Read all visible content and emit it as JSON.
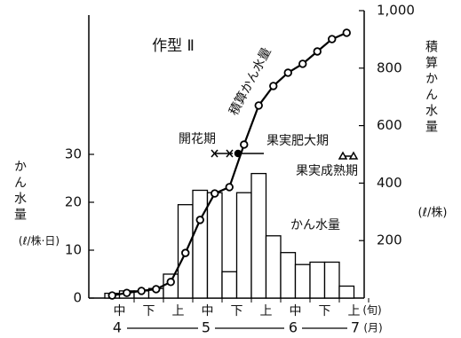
{
  "chart_data": {
    "type": "bar",
    "title": "作型 Ⅱ",
    "ylabel": "かん水量",
    "ylabel_unit": "(ℓ/株·日)",
    "y2label": "積算かん水量",
    "y2label_unit": "(ℓ/株)",
    "categories": [
      null,
      null,
      null,
      null,
      null,
      null,
      null,
      null,
      null,
      null,
      null,
      null,
      null,
      null,
      null,
      null,
      null
    ],
    "series": [
      {
        "name": "かん水量",
        "type": "bar",
        "color": "#ffffff",
        "values": [
          1,
          1.5,
          1.5,
          2,
          5,
          19.5,
          22.5,
          22,
          5.5,
          22,
          26,
          13,
          9.5,
          7,
          7.5,
          7.5,
          2.5
        ]
      },
      {
        "name": "積算かん水量",
        "type": "line",
        "axis": "y2",
        "color": "#000000",
        "values": [
          9,
          18,
          25,
          31,
          56,
          157,
          272,
          364,
          386,
          534,
          670,
          738,
          784,
          815,
          858,
          901,
          923
        ]
      }
    ],
    "decade_labels": [
      "中",
      "下",
      "上",
      "中",
      "下",
      "上",
      "中",
      "下",
      "上"
    ],
    "decade_unit": "(旬)",
    "months": [
      "4",
      "5",
      "6",
      "7"
    ],
    "month_unit": "(月)",
    "annotations": [
      "開花期",
      "果実肥大期",
      "果実成熟期"
    ],
    "ylim": [
      0,
      60
    ],
    "yticks": [
      0,
      10,
      20,
      30
    ],
    "y2lim": [
      0,
      1000
    ],
    "y2ticks": [
      200,
      400,
      600,
      800,
      {
        "value": 1000,
        "label": "1,000"
      }
    ],
    "grid": false
  }
}
